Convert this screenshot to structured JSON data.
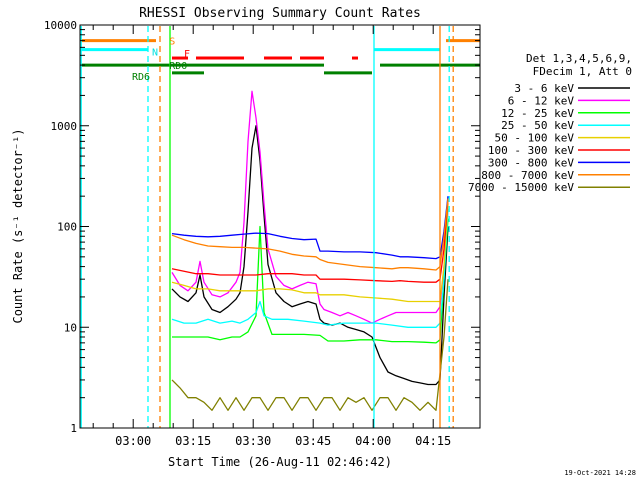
{
  "chart_data": {
    "type": "line",
    "title": "RHESSI Observing Summary Count Rates",
    "xlabel": "Start Time (26-Aug-11 02:46:42)",
    "ylabel": "Count Rate (s⁻¹ detector⁻¹)",
    "yscale": "log",
    "ylim": [
      1,
      10000
    ],
    "xlim_minutes_after_start": [
      0,
      100
    ],
    "x_ticks": [
      {
        "label": "03:00",
        "minutes": 13.3
      },
      {
        "label": "03:15",
        "minutes": 28.3
      },
      {
        "label": "03:30",
        "minutes": 43.3
      },
      {
        "label": "03:45",
        "minutes": 58.3
      },
      {
        "label": "04:00",
        "minutes": 73.3
      },
      {
        "label": "04:15",
        "minutes": 88.3
      }
    ],
    "y_ticks": [
      {
        "label": "1",
        "value": 1
      },
      {
        "label": "10",
        "value": 10
      },
      {
        "label": "100",
        "value": 100
      },
      {
        "label": "1000",
        "value": 1000
      },
      {
        "label": "10000",
        "value": 10000
      }
    ],
    "legend_title_lines": [
      "Det 1,3,4,5,6,9,",
      "FDecim 1, Att 0"
    ],
    "legend_position": "right",
    "series": [
      {
        "name": "3 - 6 keV",
        "color": "#000000",
        "x": [
          23,
          25,
          27,
          29,
          30,
          31,
          33,
          35,
          37,
          39,
          40,
          41,
          42,
          43,
          44,
          45,
          46,
          47,
          49,
          51,
          53,
          55,
          57,
          59,
          60,
          61,
          63,
          65,
          67,
          69,
          71,
          73,
          75,
          77,
          79,
          81,
          83,
          85,
          87,
          89,
          90,
          91,
          92
        ],
        "y": [
          24,
          20,
          18,
          22,
          33,
          20,
          15,
          14,
          16,
          19,
          22,
          40,
          140,
          600,
          1000,
          450,
          130,
          42,
          22,
          18,
          16,
          17,
          18,
          17,
          12,
          11,
          10.5,
          11,
          10,
          9.5,
          9,
          8,
          5,
          3.6,
          3.3,
          3.1,
          2.9,
          2.8,
          2.7,
          2.7,
          3,
          20,
          100
        ]
      },
      {
        "name": "6 - 12 keV",
        "color": "#ff00ff",
        "x": [
          23,
          25,
          27,
          29,
          30,
          31,
          33,
          35,
          37,
          39,
          40,
          41,
          42,
          43,
          44,
          45,
          46,
          47,
          49,
          51,
          53,
          55,
          57,
          59,
          60,
          61,
          63,
          65,
          67,
          69,
          71,
          73,
          75,
          77,
          79,
          81,
          83,
          85,
          87,
          89,
          90,
          91,
          92
        ],
        "y": [
          35,
          26,
          23,
          28,
          45,
          28,
          21,
          20,
          22,
          28,
          35,
          110,
          700,
          2200,
          1200,
          550,
          170,
          60,
          32,
          26,
          24,
          26,
          28,
          27,
          17,
          15,
          14,
          13,
          14,
          13,
          12,
          11,
          12,
          13,
          14,
          14,
          14,
          14,
          14,
          14,
          16,
          40,
          150
        ]
      },
      {
        "name": "12 - 25 keV",
        "color": "#00ff00",
        "x": [
          23,
          26,
          29,
          32,
          35,
          38,
          40,
          42,
          44,
          45,
          46,
          48,
          52,
          56,
          60,
          62,
          66,
          70,
          74,
          78,
          82,
          86,
          89,
          90,
          91,
          92
        ],
        "y": [
          8,
          8,
          8,
          8,
          7.5,
          8,
          8,
          9,
          13,
          100,
          14,
          8.5,
          8.5,
          8.5,
          8.3,
          7.3,
          7.3,
          7.5,
          7.5,
          7.2,
          7.2,
          7.1,
          7,
          7.5,
          30,
          120
        ]
      },
      {
        "name": "25 - 50 keV",
        "color": "#00ffff",
        "x": [
          23,
          26,
          29,
          32,
          35,
          38,
          40,
          42,
          44,
          45,
          46,
          48,
          52,
          56,
          60,
          62,
          66,
          70,
          74,
          78,
          82,
          86,
          89,
          90,
          91,
          92
        ],
        "y": [
          12,
          11,
          11,
          12,
          11,
          11.5,
          11,
          12,
          14,
          18,
          13,
          12,
          12,
          11.5,
          11,
          10.5,
          11,
          11,
          11,
          10.5,
          10,
          10,
          10,
          11,
          30,
          150
        ]
      },
      {
        "name": "50 - 100 keV",
        "color": "#e8d000",
        "x": [
          23,
          26,
          29,
          32,
          35,
          38,
          41,
          44,
          47,
          50,
          53,
          56,
          59,
          60,
          62,
          66,
          70,
          74,
          78,
          82,
          86,
          89,
          90,
          91,
          92
        ],
        "y": [
          28,
          26,
          24,
          24,
          23,
          23,
          23,
          23,
          24,
          24,
          23.5,
          22,
          22,
          21,
          21,
          21,
          20,
          19.5,
          19,
          18,
          18,
          18,
          18,
          40,
          170
        ]
      },
      {
        "name": "100 - 300 keV",
        "color": "#ff0000",
        "x": [
          23,
          26,
          29,
          32,
          35,
          38,
          41,
          44,
          47,
          50,
          53,
          56,
          59,
          60,
          62,
          66,
          70,
          74,
          78,
          80,
          82,
          86,
          89,
          90,
          91,
          92
        ],
        "y": [
          38,
          36,
          34,
          34,
          33,
          33,
          33,
          33,
          34,
          34,
          34,
          33,
          33,
          30,
          30,
          30,
          29.5,
          29,
          28.5,
          29,
          28.5,
          28,
          28,
          30,
          60,
          190
        ]
      },
      {
        "name": "300 - 800 keV",
        "color": "#0000ff",
        "x": [
          23,
          26,
          29,
          32,
          35,
          38,
          41,
          44,
          47,
          50,
          53,
          56,
          59,
          60,
          62,
          66,
          70,
          74,
          78,
          80,
          82,
          86,
          89,
          90,
          91,
          92
        ],
        "y": [
          85,
          82,
          80,
          79,
          80,
          82,
          84,
          86,
          85,
          80,
          76,
          74,
          75,
          57,
          57,
          56,
          56,
          55,
          52,
          50,
          50,
          49,
          48,
          50,
          90,
          200
        ]
      },
      {
        "name": "800 - 7000 keV",
        "color": "#ff8000",
        "x": [
          23,
          26,
          29,
          32,
          35,
          38,
          41,
          44,
          47,
          50,
          53,
          56,
          59,
          60,
          62,
          66,
          70,
          74,
          78,
          80,
          82,
          86,
          89,
          90,
          91,
          92
        ],
        "y": [
          82,
          74,
          68,
          64,
          63,
          62,
          62,
          61,
          60,
          57,
          53,
          51,
          50,
          47,
          44,
          42,
          40,
          39,
          38,
          39,
          39,
          38,
          37,
          40,
          80,
          190
        ]
      },
      {
        "name": "7000 - 15000 keV",
        "color": "#808000",
        "x": [
          23,
          25,
          27,
          29,
          31,
          33,
          35,
          37,
          39,
          41,
          43,
          45,
          47,
          49,
          51,
          53,
          55,
          57,
          59,
          61,
          63,
          65,
          67,
          69,
          71,
          73,
          75,
          77,
          79,
          81,
          83,
          85,
          87,
          89,
          91,
          92
        ],
        "y": [
          3,
          2.5,
          2,
          2,
          1.8,
          1.5,
          2,
          1.5,
          2,
          1.5,
          2,
          2,
          1.5,
          2,
          2,
          1.5,
          2,
          2,
          1.5,
          2,
          2,
          1.5,
          2,
          1.8,
          2,
          1.5,
          2,
          2,
          1.5,
          2,
          1.8,
          1.5,
          1.8,
          1.5,
          8,
          30
        ]
      }
    ],
    "annotations": [
      {
        "text": "S",
        "color": "#ff8000"
      },
      {
        "text": "N",
        "color": "#00e0e0"
      },
      {
        "text": "F",
        "color": "#ff0000"
      },
      {
        "text": "RD0",
        "color": "#008000"
      },
      {
        "text": "RD6",
        "color": "#008000"
      }
    ],
    "status_bars": [
      {
        "label": "S",
        "color": "#ff8000",
        "level": 7000,
        "segments": [
          [
            0,
            19
          ],
          [
            91.5,
            100
          ]
        ]
      },
      {
        "label": "N",
        "color": "#00ffff",
        "level": 5700,
        "segments": [
          [
            0,
            17
          ],
          [
            73.5,
            90
          ]
        ]
      },
      {
        "label": "F",
        "color": "#ff0000",
        "level": 4700,
        "segments": [
          [
            23,
            27
          ],
          [
            29,
            41
          ],
          [
            46,
            53
          ],
          [
            55,
            61
          ],
          [
            68,
            69.5
          ]
        ]
      },
      {
        "label": "RD0",
        "color": "#008000",
        "level": 4000,
        "segments": [
          [
            0,
            22
          ],
          [
            22,
            61
          ],
          [
            75,
            100
          ]
        ]
      },
      {
        "label": "RD6",
        "color": "#008000",
        "level": 3350,
        "segments": [
          [
            23,
            31
          ],
          [
            61,
            73
          ]
        ]
      }
    ],
    "vertical_lines": [
      {
        "minutes": 0.3,
        "color": "#00ffff",
        "style": "solid"
      },
      {
        "minutes": 17,
        "color": "#00ffff",
        "style": "dashed"
      },
      {
        "minutes": 20,
        "color": "#ff8000",
        "style": "dashed"
      },
      {
        "minutes": 22.5,
        "color": "#00ff00",
        "style": "solid"
      },
      {
        "minutes": 73.5,
        "color": "#00ffff",
        "style": "solid"
      },
      {
        "minutes": 90,
        "color": "#ff8000",
        "style": "solid"
      },
      {
        "minutes": 92.3,
        "color": "#00ffff",
        "style": "dashed"
      },
      {
        "minutes": 93.3,
        "color": "#ff8000",
        "style": "dashed"
      }
    ],
    "footer_date": "19-Oct-2021 14:28"
  }
}
